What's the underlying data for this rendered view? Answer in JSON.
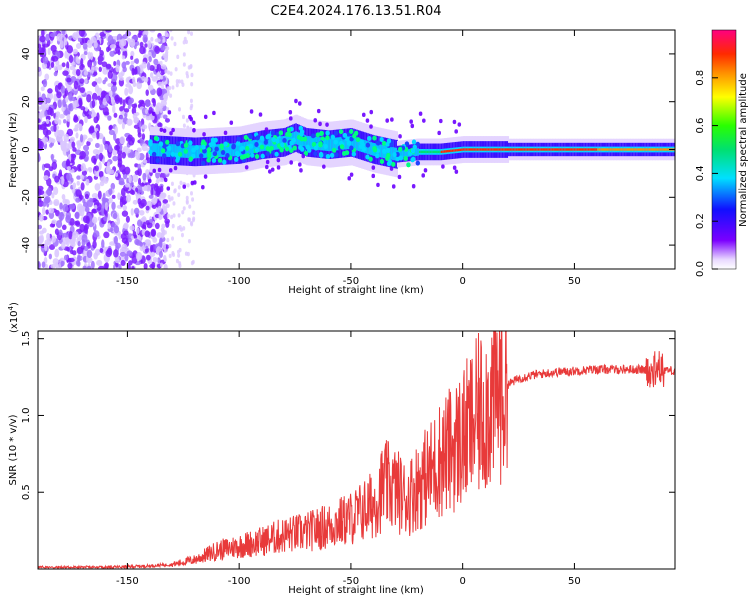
{
  "title": "C2E4.2024.176.13.51.R04",
  "colors": {
    "snr_line": "#e83a3a",
    "background": "#ffffff"
  },
  "chart_data": [
    {
      "type": "heatmap",
      "panel": "top",
      "xlabel": "Height of straight line (km)",
      "ylabel": "Frequency (Hz)",
      "xlim": [
        -190,
        95
      ],
      "ylim": [
        -50,
        50
      ],
      "x_ticks": [
        -150,
        -100,
        -50,
        0,
        50
      ],
      "y_ticks": [
        -40,
        -20,
        0,
        20,
        40
      ],
      "colorbar": {
        "label": "Normalized spectral amplitude",
        "range": [
          0.0,
          1.0
        ],
        "ticks": [
          "0.0",
          "0.2",
          "0.4",
          "0.6",
          "0.8"
        ],
        "colormap": "rainbow"
      },
      "ridge": {
        "description_points_x": [
          -140,
          -120,
          -100,
          -90,
          -80,
          -75,
          -70,
          -60,
          -50,
          -40,
          -30,
          -20,
          -10,
          0,
          10,
          20,
          40,
          60,
          80,
          95
        ],
        "center_hz": [
          0,
          -1,
          0,
          2,
          3,
          5,
          3,
          2,
          3,
          0,
          -2,
          -1,
          -1,
          0,
          0,
          0,
          0,
          0,
          0,
          0
        ]
      }
    },
    {
      "type": "line",
      "panel": "bottom",
      "xlabel": "Height of straight line (km)",
      "ylabel": "SNR (10 * v/v)",
      "y_multiplier": "(x10⁴)",
      "xlim": [
        -190,
        95
      ],
      "ylim": [
        0,
        1.55
      ],
      "x_ticks": [
        -150,
        -100,
        -50,
        0,
        50
      ],
      "y_ticks": [
        "0.5",
        "1.0",
        "1.5"
      ],
      "series": [
        {
          "x": [
            -190,
            -160,
            -140,
            -130,
            -120,
            -110,
            -100,
            -90,
            -80,
            -70,
            -60,
            -50,
            -40,
            -35,
            -30,
            -25,
            -20,
            -15,
            -10,
            -5,
            0,
            5,
            10,
            15,
            20,
            25,
            30,
            40,
            50,
            60,
            70,
            80,
            85,
            90,
            95
          ],
          "values": [
            0.01,
            0.01,
            0.02,
            0.03,
            0.06,
            0.12,
            0.15,
            0.18,
            0.22,
            0.24,
            0.28,
            0.33,
            0.42,
            0.55,
            0.52,
            0.45,
            0.55,
            0.62,
            0.72,
            0.78,
            0.85,
            0.95,
            1.05,
            1.15,
            1.2,
            1.24,
            1.26,
            1.28,
            1.29,
            1.3,
            1.3,
            1.3,
            1.28,
            1.3,
            1.29
          ]
        }
      ]
    }
  ],
  "labels": {
    "top_xlabel": "Height of straight line (km)",
    "top_ylabel": "Frequency (Hz)",
    "bottom_xlabel": "Height of straight line (km)",
    "bottom_ylabel": "SNR (10 * v/v)",
    "multiplier": "(x10",
    "multiplier_exp": "4",
    "multiplier_close": ")",
    "colorbar_label": "Normalized spectral amplitude"
  }
}
